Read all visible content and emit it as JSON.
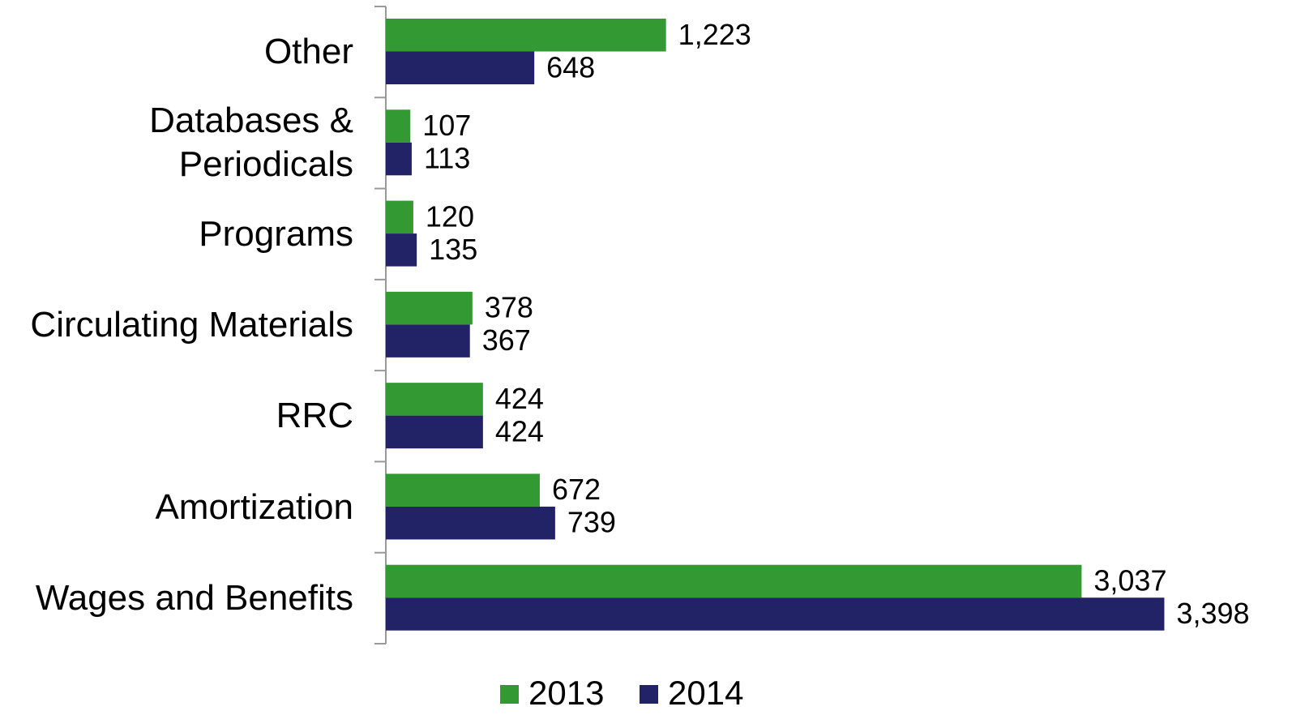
{
  "chart_data": {
    "type": "bar",
    "orientation": "horizontal",
    "categories": [
      "Other",
      "Databases &\nPeriodicals",
      "Programs",
      "Circulating Materials",
      "RRC ",
      "Amortization",
      "Wages and Benefits"
    ],
    "series": [
      {
        "name": "2013",
        "color": "#339933",
        "values": [
          1223,
          107,
          120,
          378,
          424,
          672,
          3037
        ],
        "value_labels": [
          "1,223",
          "107",
          "120",
          "378",
          "424",
          "672",
          "3,037"
        ]
      },
      {
        "name": "2014",
        "color": "#222266",
        "values": [
          648,
          113,
          135,
          367,
          424,
          739,
          3398
        ],
        "value_labels": [
          "648",
          "113",
          "135",
          "367",
          "424",
          "739",
          "3,398"
        ]
      }
    ],
    "xlim": [
      0,
      3400
    ],
    "legend": "bottom"
  }
}
